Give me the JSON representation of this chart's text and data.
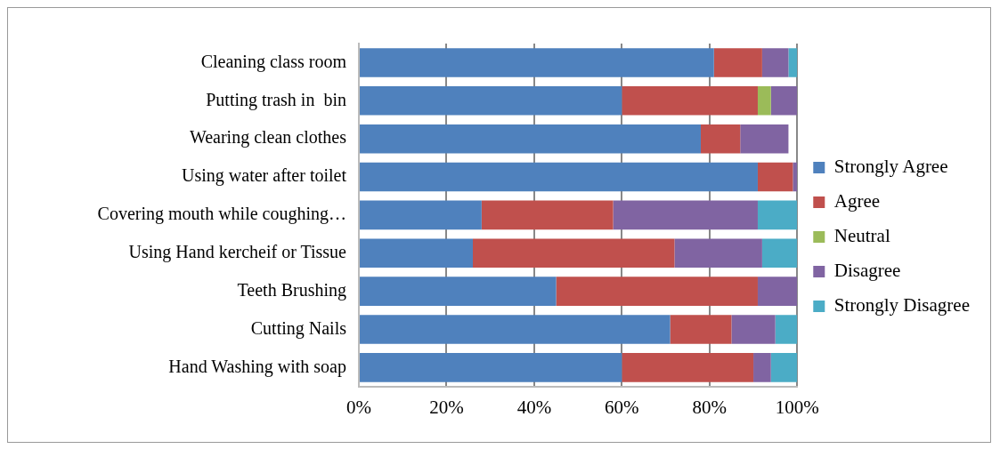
{
  "chart_data": {
    "type": "bar",
    "orientation": "horizontal",
    "stacked": true,
    "categories": [
      "Cleaning class room",
      "Putting trash in  bin",
      "Wearing clean clothes",
      "Using water after toilet",
      "Covering mouth while coughing…",
      "Using Hand kercheif or Tissue",
      "Teeth Brushing",
      "Cutting Nails",
      "Hand Washing with soap"
    ],
    "series": [
      {
        "name": "Strongly Agree",
        "color": "#4f81bd",
        "values": [
          81,
          60,
          78,
          91,
          28,
          26,
          45,
          71,
          60
        ]
      },
      {
        "name": "Agree",
        "color": "#c0504d",
        "values": [
          11,
          31,
          9,
          8,
          30,
          46,
          46,
          14,
          30
        ]
      },
      {
        "name": "Neutral",
        "color": "#9bbb59",
        "values": [
          0,
          3,
          0,
          0,
          0,
          0,
          0,
          0,
          0
        ]
      },
      {
        "name": "Disagree",
        "color": "#8064a2",
        "values": [
          6,
          6,
          11,
          1,
          33,
          20,
          9,
          10,
          4
        ]
      },
      {
        "name": "Strongly Disagree",
        "color": "#4bacc6",
        "values": [
          2,
          0,
          0,
          0,
          9,
          8,
          0,
          5,
          6
        ]
      }
    ],
    "xlim": [
      0,
      100
    ],
    "xticks": [
      {
        "value": 0,
        "label": "0%"
      },
      {
        "value": 20,
        "label": "20%"
      },
      {
        "value": 40,
        "label": "40%"
      },
      {
        "value": 60,
        "label": "60%"
      },
      {
        "value": 80,
        "label": "80%"
      },
      {
        "value": 100,
        "label": "100%"
      }
    ],
    "grid": "x",
    "legend": "right"
  }
}
